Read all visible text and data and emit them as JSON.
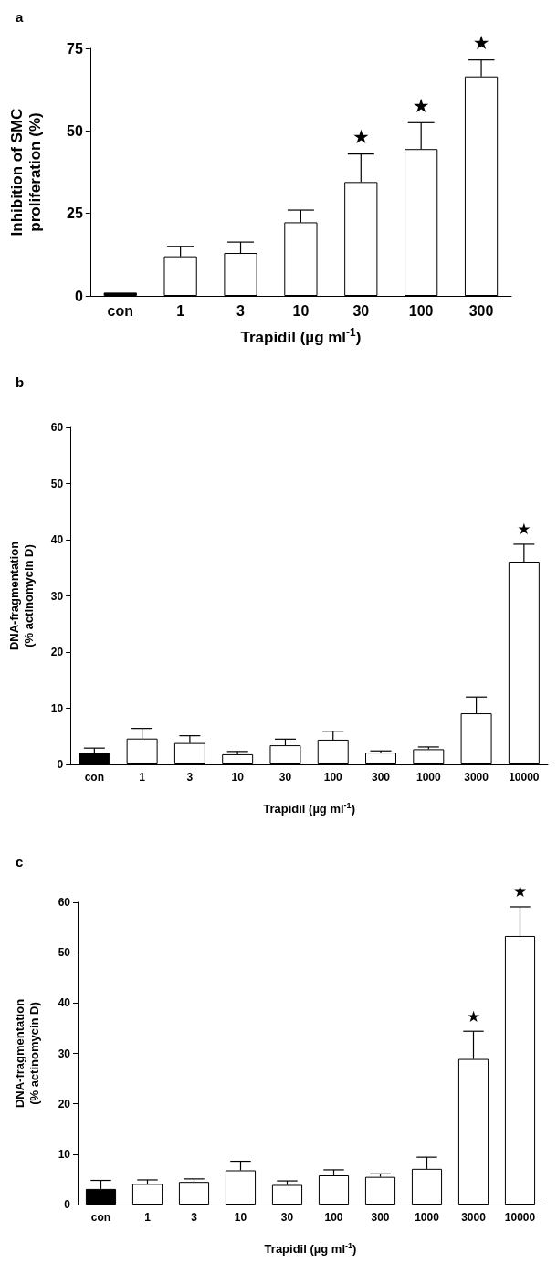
{
  "chart_data": [
    {
      "type": "bar",
      "title": "a",
      "xlabel": "Trapidil (µg ml$^{-1}$)",
      "ylabel": "Inhibition of SMC proliferation (%)",
      "categories": [
        "con",
        "1",
        "3",
        "10",
        "30",
        "100",
        "300"
      ],
      "values": [
        1,
        12,
        13,
        22.3,
        34.5,
        44.5,
        66.5
      ],
      "colors": [
        "#000000",
        "#ffffff",
        "#ffffff",
        "#ffffff",
        "#ffffff",
        "#ffffff",
        "#ffffff"
      ],
      "errors": [
        null,
        [
          12,
          15
        ],
        [
          13,
          16.3
        ],
        [
          22.3,
          26
        ],
        [
          34.5,
          43
        ],
        [
          44.5,
          52.5
        ],
        [
          66.5,
          71.5
        ]
      ],
      "ylim": [
        0,
        75
      ],
      "yticks": [
        0,
        25,
        50,
        75
      ],
      "grid": false,
      "annotations": [
        {
          "text": "★",
          "x": "30",
          "y": 43
        },
        {
          "text": "★",
          "x": "100",
          "y": 52.5
        },
        {
          "text": "★",
          "x": "300",
          "y": 71.5
        }
      ]
    },
    {
      "type": "bar",
      "title": "b",
      "xlabel": "Trapidil (µg ml$^{-1}$)",
      "ylabel": "DNA-fragmentation (% actinomycin D)",
      "categories": [
        "con",
        "1",
        "3",
        "10",
        "30",
        "100",
        "300",
        "1000",
        "3000",
        "10000"
      ],
      "values": [
        2.1,
        4.6,
        3.8,
        1.8,
        3.4,
        4.4,
        2.1,
        2.7,
        9.1,
        36.1
      ],
      "colors": [
        "#000000",
        "#ffffff",
        "#ffffff",
        "#ffffff",
        "#ffffff",
        "#ffffff",
        "#ffffff",
        "#ffffff",
        "#ffffff",
        "#ffffff"
      ],
      "errors": [
        [
          2.1,
          2.9
        ],
        [
          4.6,
          6.4
        ],
        [
          3.8,
          5.1
        ],
        [
          1.8,
          2.3
        ],
        [
          3.4,
          4.5
        ],
        [
          4.4,
          5.9
        ],
        [
          2.1,
          2.4
        ],
        [
          2.7,
          3.1
        ],
        [
          9.1,
          12
        ],
        [
          36.1,
          39.2
        ]
      ],
      "ylim": [
        0,
        60
      ],
      "yticks": [
        0,
        10,
        20,
        30,
        40,
        50,
        60
      ],
      "grid": false,
      "annotations": [
        {
          "text": "★",
          "x": "10000",
          "y": 39.2
        }
      ]
    },
    {
      "type": "bar",
      "title": "c",
      "xlabel": "Trapidil (µg ml$^{-1}$)",
      "ylabel": "DNA-fragmentation (% actinomycin D)",
      "categories": [
        "con",
        "1",
        "3",
        "10",
        "30",
        "100",
        "300",
        "1000",
        "3000",
        "10000"
      ],
      "values": [
        3.1,
        4.1,
        4.5,
        6.8,
        3.9,
        5.8,
        5.5,
        7.1,
        28.9,
        53.3
      ],
      "colors": [
        "#000000",
        "#ffffff",
        "#ffffff",
        "#ffffff",
        "#ffffff",
        "#ffffff",
        "#ffffff",
        "#ffffff",
        "#ffffff",
        "#ffffff"
      ],
      "errors": [
        [
          3.1,
          4.8
        ],
        [
          4.1,
          4.9
        ],
        [
          4.5,
          5.1
        ],
        [
          6.8,
          8.6
        ],
        [
          3.9,
          4.7
        ],
        [
          5.8,
          6.9
        ],
        [
          5.5,
          6.1
        ],
        [
          7.1,
          9.4
        ],
        [
          28.9,
          34.4
        ],
        [
          53.3,
          59.1
        ]
      ],
      "ylim": [
        0,
        60
      ],
      "yticks": [
        0,
        10,
        20,
        30,
        40,
        50,
        60
      ],
      "grid": false,
      "annotations": [
        {
          "text": "★",
          "x": "3000",
          "y": 34.4
        },
        {
          "text": "★",
          "x": "10000",
          "y": 59.1
        }
      ]
    }
  ]
}
